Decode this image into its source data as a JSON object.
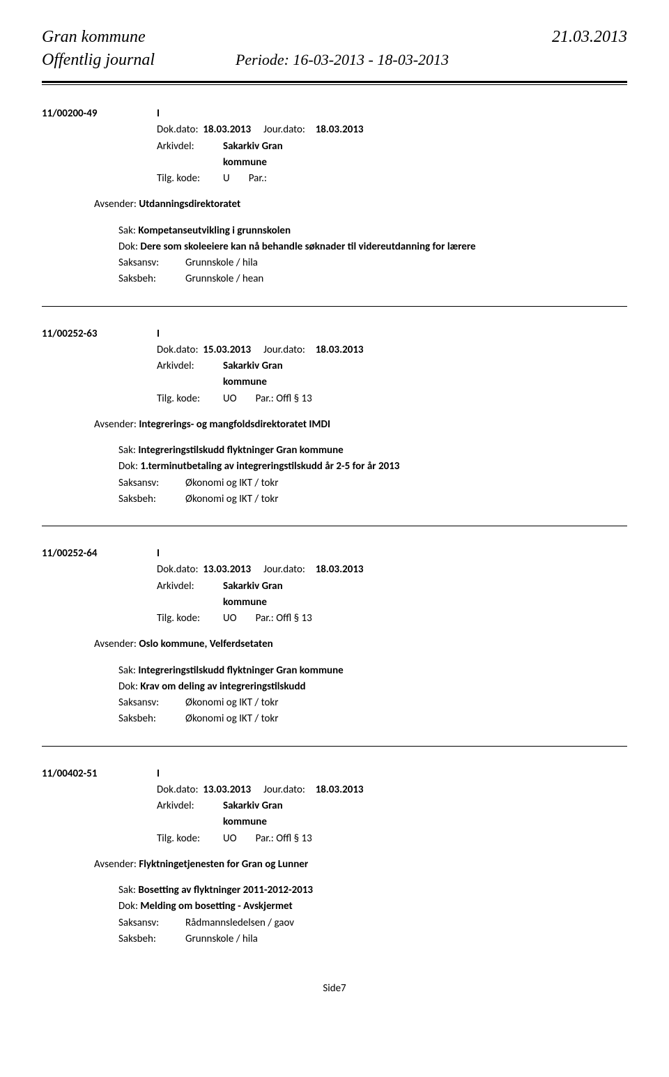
{
  "header": {
    "org": "Gran kommune",
    "date": "21.03.2013",
    "journal": "Offentlig journal",
    "period": "Periode: 16-03-2013 - 18-03-2013"
  },
  "entries": [
    {
      "case_id": "11/00200-49",
      "type": "I",
      "dok_dato": "18.03.2013",
      "jour_dato": "18.03.2013",
      "arkivdel": "Sakarkiv Gran kommune",
      "tilg_kode": "U",
      "par": "Par.:",
      "avsender_label": "Avsender:",
      "avsender": "Utdanningsdirektoratet",
      "sak_label": "Sak:",
      "sak": "Kompetanseutvikling i grunnskolen",
      "dok_label": "Dok:",
      "dok": "Dere som skoleeiere kan nå behandle søknader til videreutdanning for lærere",
      "saksansv_label": "Saksansv:",
      "saksansv": "Grunnskole / hila",
      "saksbeh_label": "Saksbeh:",
      "saksbeh": "Grunnskole / hean"
    },
    {
      "case_id": "11/00252-63",
      "type": "I",
      "dok_dato": "15.03.2013",
      "jour_dato": "18.03.2013",
      "arkivdel": "Sakarkiv Gran kommune",
      "tilg_kode": "UO",
      "par": "Par.: Offl § 13",
      "avsender_label": "Avsender:",
      "avsender": "Integrerings- og mangfoldsdirektoratet IMDI",
      "sak_label": "Sak:",
      "sak": "Integreringstilskudd flyktninger Gran kommune",
      "dok_label": "Dok:",
      "dok": "1.terminutbetaling av integreringstilskudd år 2-5 for år 2013",
      "saksansv_label": "Saksansv:",
      "saksansv": "Økonomi og IKT / tokr",
      "saksbeh_label": "Saksbeh:",
      "saksbeh": "Økonomi og IKT / tokr"
    },
    {
      "case_id": "11/00252-64",
      "type": "I",
      "dok_dato": "13.03.2013",
      "jour_dato": "18.03.2013",
      "arkivdel": "Sakarkiv Gran kommune",
      "tilg_kode": "UO",
      "par": "Par.: Offl § 13",
      "avsender_label": "Avsender:",
      "avsender": "Oslo kommune, Velferdsetaten",
      "sak_label": "Sak:",
      "sak": "Integreringstilskudd flyktninger Gran kommune",
      "dok_label": "Dok:",
      "dok": "Krav om deling av integreringstilskudd",
      "saksansv_label": "Saksansv:",
      "saksansv": "Økonomi og IKT / tokr",
      "saksbeh_label": "Saksbeh:",
      "saksbeh": "Økonomi og IKT / tokr"
    },
    {
      "case_id": "11/00402-51",
      "type": "I",
      "dok_dato": "13.03.2013",
      "jour_dato": "18.03.2013",
      "arkivdel": "Sakarkiv Gran kommune",
      "tilg_kode": "UO",
      "par": "Par.: Offl § 13",
      "avsender_label": "Avsender:",
      "avsender": "Flyktningetjenesten for Gran og Lunner",
      "sak_label": "Sak:",
      "sak": "Bosetting av flyktninger 2011-2012-2013",
      "dok_label": "Dok:",
      "dok": "Melding om bosetting - Avskjermet",
      "saksansv_label": "Saksansv:",
      "saksansv": "Rådmannsledelsen / gaov",
      "saksbeh_label": "Saksbeh:",
      "saksbeh": "Grunnskole / hila"
    }
  ],
  "labels": {
    "dok_dato": "Dok.dato:",
    "jour_dato": "Jour.dato:",
    "arkivdel": "Arkivdel:",
    "tilg_kode": "Tilg. kode:"
  },
  "page": "Side7"
}
